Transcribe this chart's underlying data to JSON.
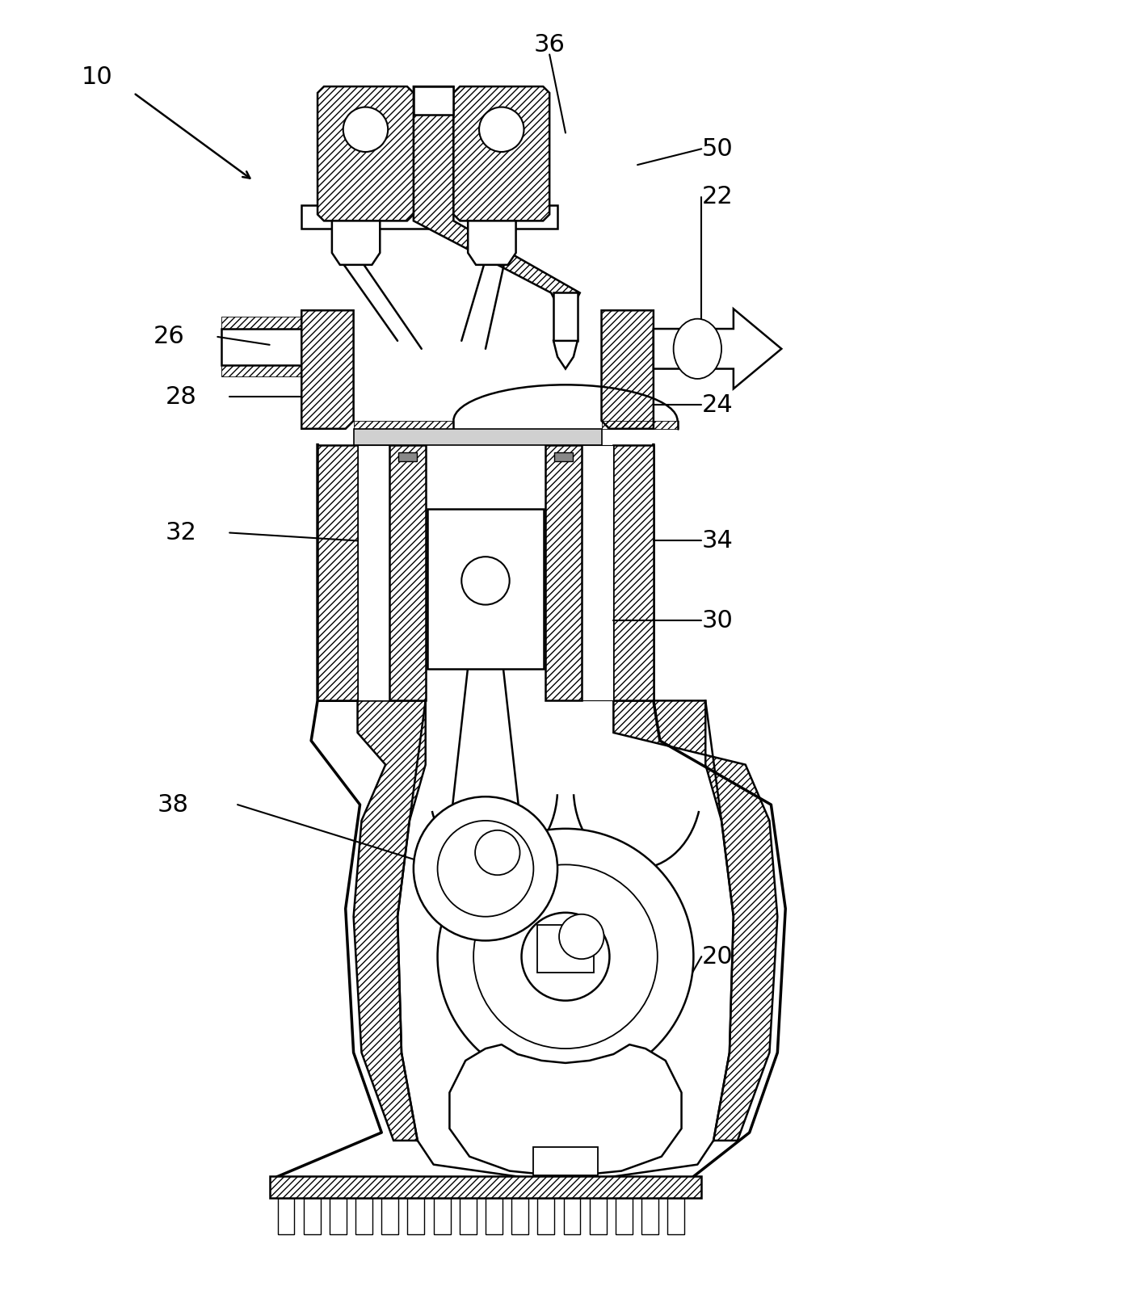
{
  "bg_color": "#ffffff",
  "line_color": "#000000",
  "figsize": [
    13.95,
    16.18
  ],
  "dpi": 100,
  "lw_main": 1.8,
  "lw_thick": 2.5,
  "lw_thin": 1.0,
  "label_fs": 20
}
